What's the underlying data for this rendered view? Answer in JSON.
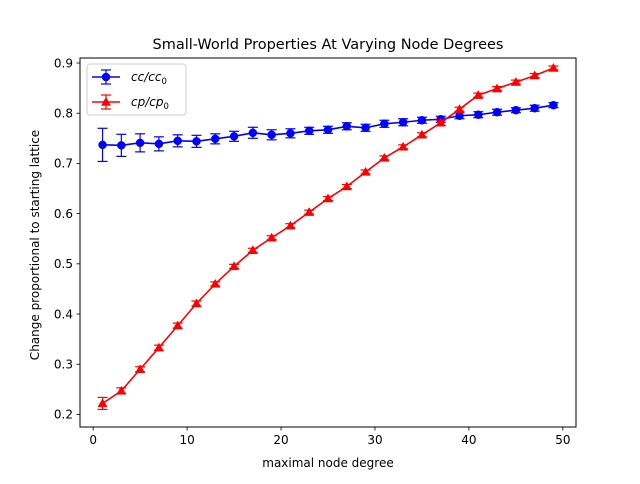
{
  "chart_data": {
    "type": "line",
    "title": "Small-World Properties At Varying Node Degrees",
    "xlabel": "maximal node degree",
    "ylabel": "Change proportional to starting lattice",
    "xlim": [
      -1.4,
      51.4
    ],
    "ylim": [
      0.175,
      0.91
    ],
    "xticks": [
      0,
      10,
      20,
      30,
      40,
      50
    ],
    "yticks": [
      0.2,
      0.3,
      0.4,
      0.5,
      0.6,
      0.7,
      0.8,
      0.9
    ],
    "grid": false,
    "legend_position": "upper-left",
    "x": [
      1,
      3,
      5,
      7,
      9,
      11,
      13,
      15,
      17,
      19,
      21,
      23,
      25,
      27,
      29,
      31,
      33,
      35,
      37,
      39,
      41,
      43,
      45,
      47,
      49
    ],
    "series": [
      {
        "name": "cc/cc",
        "name_sub": "0",
        "color": "#0000ff",
        "marker": "circle",
        "values": [
          0.737,
          0.736,
          0.741,
          0.739,
          0.745,
          0.744,
          0.749,
          0.754,
          0.761,
          0.757,
          0.76,
          0.765,
          0.767,
          0.774,
          0.771,
          0.779,
          0.782,
          0.786,
          0.788,
          0.795,
          0.797,
          0.802,
          0.806,
          0.81,
          0.816
        ],
        "errors": [
          0.033,
          0.022,
          0.018,
          0.014,
          0.012,
          0.012,
          0.01,
          0.01,
          0.011,
          0.01,
          0.009,
          0.007,
          0.007,
          0.007,
          0.007,
          0.007,
          0.007,
          0.006,
          0.006,
          0.006,
          0.006,
          0.006,
          0.005,
          0.006,
          0.005
        ]
      },
      {
        "name": "cp/cp",
        "name_sub": "0",
        "color": "#ff0000",
        "marker": "triangle",
        "values": [
          0.222,
          0.247,
          0.29,
          0.333,
          0.377,
          0.421,
          0.46,
          0.495,
          0.527,
          0.552,
          0.576,
          0.603,
          0.63,
          0.654,
          0.683,
          0.711,
          0.733,
          0.757,
          0.781,
          0.808,
          0.836,
          0.849,
          0.862,
          0.875,
          0.89
        ],
        "errors": [
          0.012,
          0.006,
          0.005,
          0.005,
          0.005,
          0.005,
          0.004,
          0.004,
          0.004,
          0.004,
          0.004,
          0.004,
          0.004,
          0.004,
          0.004,
          0.004,
          0.004,
          0.004,
          0.005,
          0.004,
          0.004,
          0.004,
          0.004,
          0.004,
          0.004
        ]
      }
    ]
  }
}
